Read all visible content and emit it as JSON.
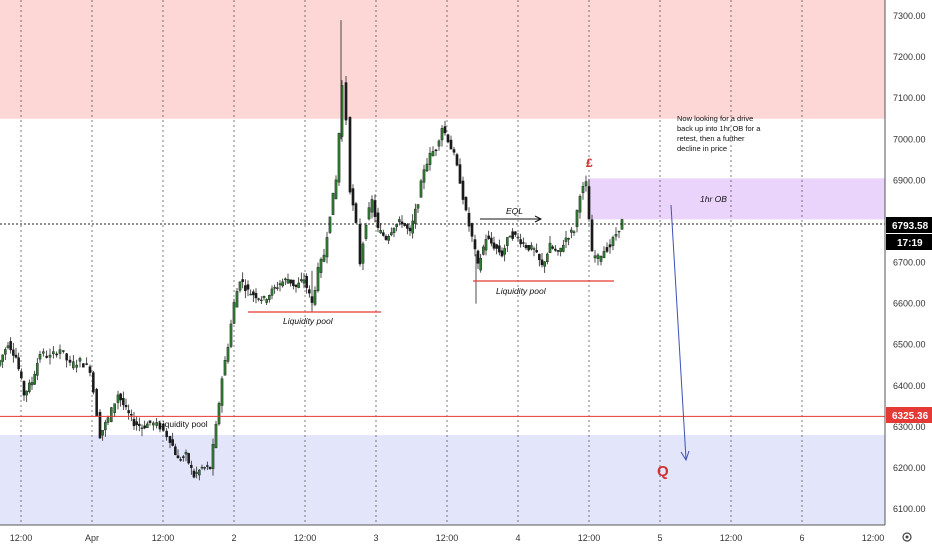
{
  "chart_data": {
    "type": "candlestick",
    "symbol_note": "",
    "y_axis": {
      "ticks": [
        "7300.00",
        "7200.00",
        "7100.00",
        "7000.00",
        "6900.00",
        "6800.00",
        "6700.00",
        "6600.00",
        "6500.00",
        "6400.00",
        "6300.00",
        "6200.00",
        "6100.00"
      ],
      "tick_values": [
        7300,
        7200,
        7100,
        7000,
        6900,
        6800,
        6700,
        6600,
        6500,
        6400,
        6300,
        6200,
        6100
      ],
      "range": [
        6075,
        7330
      ]
    },
    "x_axis": {
      "ticks": [
        "12:00",
        "Apr",
        "12:00",
        "2",
        "12:00",
        "3",
        "12:00",
        "4",
        "12:00",
        "5",
        "12:00",
        "6",
        "12:00"
      ]
    },
    "price_labels": {
      "current": "6793.58",
      "countdown": "17:19",
      "level": "6325.36"
    },
    "current_value": 6793.58,
    "level_value": 6325.36,
    "zones": [
      {
        "name": "supply-zone",
        "from": 7050,
        "to": 7330,
        "color": "#fdd6d6"
      },
      {
        "name": "demand-zone",
        "from": 6075,
        "to": 6280,
        "color": "#e3e6fb"
      }
    ],
    "order_block": {
      "label": "1hr OB",
      "from": 6805,
      "to": 6905,
      "color": "#ead4fb"
    },
    "annotations": {
      "liquidity_pool_1": "Liquidity pool",
      "liquidity_pool_2": "Liquidity pool",
      "liquidity_pool_3": "Liquidity pool",
      "eql": "EQL",
      "note": "Now looking for a drive back up into 1hr OB for a retest, then a further decline in price",
      "note_lines": [
        "Now looking for a drive",
        "back up into 1hr OB for a",
        "retest, then a further",
        "decline in price"
      ],
      "marker_top": "£",
      "marker_bottom": "Q"
    },
    "series": [
      {
        "x": 0,
        "y": 6460
      },
      {
        "x": 8,
        "y": 6505
      },
      {
        "x": 16,
        "y": 6470
      },
      {
        "x": 24,
        "y": 6380
      },
      {
        "x": 32,
        "y": 6410
      },
      {
        "x": 40,
        "y": 6480
      },
      {
        "x": 50,
        "y": 6470
      },
      {
        "x": 60,
        "y": 6490
      },
      {
        "x": 70,
        "y": 6450
      },
      {
        "x": 80,
        "y": 6460
      },
      {
        "x": 90,
        "y": 6440
      },
      {
        "x": 100,
        "y": 6280
      },
      {
        "x": 108,
        "y": 6320
      },
      {
        "x": 118,
        "y": 6380
      },
      {
        "x": 126,
        "y": 6340
      },
      {
        "x": 134,
        "y": 6310
      },
      {
        "x": 142,
        "y": 6300
      },
      {
        "x": 150,
        "y": 6310
      },
      {
        "x": 160,
        "y": 6300
      },
      {
        "x": 170,
        "y": 6270
      },
      {
        "x": 178,
        "y": 6220
      },
      {
        "x": 186,
        "y": 6230
      },
      {
        "x": 194,
        "y": 6180
      },
      {
        "x": 202,
        "y": 6200
      },
      {
        "x": 210,
        "y": 6200
      },
      {
        "x": 216,
        "y": 6300
      },
      {
        "x": 222,
        "y": 6420
      },
      {
        "x": 228,
        "y": 6500
      },
      {
        "x": 234,
        "y": 6600
      },
      {
        "x": 240,
        "y": 6660
      },
      {
        "x": 248,
        "y": 6630
      },
      {
        "x": 256,
        "y": 6620
      },
      {
        "x": 264,
        "y": 6610
      },
      {
        "x": 272,
        "y": 6630
      },
      {
        "x": 280,
        "y": 6650
      },
      {
        "x": 288,
        "y": 6660
      },
      {
        "x": 296,
        "y": 6640
      },
      {
        "x": 304,
        "y": 6660
      },
      {
        "x": 312,
        "y": 6600
      },
      {
        "x": 318,
        "y": 6680
      },
      {
        "x": 324,
        "y": 6720
      },
      {
        "x": 330,
        "y": 6820
      },
      {
        "x": 336,
        "y": 6900
      },
      {
        "x": 342,
        "y": 7130
      },
      {
        "x": 346,
        "y": 7050
      },
      {
        "x": 350,
        "y": 6880
      },
      {
        "x": 356,
        "y": 6790
      },
      {
        "x": 360,
        "y": 6700
      },
      {
        "x": 366,
        "y": 6800
      },
      {
        "x": 372,
        "y": 6850
      },
      {
        "x": 378,
        "y": 6780
      },
      {
        "x": 386,
        "y": 6760
      },
      {
        "x": 394,
        "y": 6790
      },
      {
        "x": 402,
        "y": 6800
      },
      {
        "x": 410,
        "y": 6770
      },
      {
        "x": 418,
        "y": 6850
      },
      {
        "x": 424,
        "y": 6930
      },
      {
        "x": 430,
        "y": 6960
      },
      {
        "x": 436,
        "y": 6980
      },
      {
        "x": 442,
        "y": 7030
      },
      {
        "x": 448,
        "y": 7000
      },
      {
        "x": 454,
        "y": 6960
      },
      {
        "x": 460,
        "y": 6900
      },
      {
        "x": 466,
        "y": 6820
      },
      {
        "x": 472,
        "y": 6760
      },
      {
        "x": 478,
        "y": 6690
      },
      {
        "x": 486,
        "y": 6760
      },
      {
        "x": 494,
        "y": 6740
      },
      {
        "x": 502,
        "y": 6720
      },
      {
        "x": 510,
        "y": 6770
      },
      {
        "x": 518,
        "y": 6760
      },
      {
        "x": 526,
        "y": 6740
      },
      {
        "x": 534,
        "y": 6730
      },
      {
        "x": 542,
        "y": 6690
      },
      {
        "x": 550,
        "y": 6740
      },
      {
        "x": 558,
        "y": 6720
      },
      {
        "x": 566,
        "y": 6760
      },
      {
        "x": 574,
        "y": 6780
      },
      {
        "x": 580,
        "y": 6870
      },
      {
        "x": 586,
        "y": 6890
      },
      {
        "x": 592,
        "y": 6720
      },
      {
        "x": 598,
        "y": 6710
      },
      {
        "x": 604,
        "y": 6730
      },
      {
        "x": 610,
        "y": 6740
      },
      {
        "x": 616,
        "y": 6770
      },
      {
        "x": 622,
        "y": 6800
      }
    ]
  }
}
